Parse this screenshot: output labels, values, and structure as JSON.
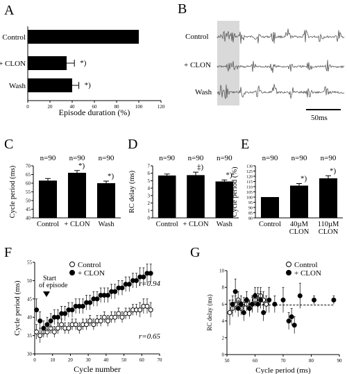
{
  "panels": {
    "A": {
      "letter": "A"
    },
    "B": {
      "letter": "B",
      "traces": [
        "Control",
        "+ CLON",
        "Wash"
      ],
      "scale_label": "50ms"
    },
    "C": {
      "letter": "C"
    },
    "D": {
      "letter": "D"
    },
    "E": {
      "letter": "E"
    },
    "F": {
      "letter": "F",
      "annotation": "Start\nof episode",
      "r_top": "r=0.94",
      "r_bottom": "r=0.65"
    },
    "G": {
      "letter": "G"
    }
  },
  "chart_data": [
    {
      "id": "A",
      "type": "bar",
      "orientation": "horizontal",
      "categories": [
        "Control",
        "+ CLON",
        "Wash"
      ],
      "values": [
        100,
        35,
        40
      ],
      "errors": [
        0,
        7,
        6
      ],
      "significance": [
        "",
        "*)",
        "*)"
      ],
      "xlabel": "Episode duration (%)",
      "xlim": [
        0,
        120
      ],
      "xticks": [
        0,
        20,
        40,
        60,
        80,
        100,
        120
      ]
    },
    {
      "id": "C",
      "type": "bar",
      "categories": [
        "Control",
        "+ CLON",
        "Wash"
      ],
      "values": [
        61.5,
        66,
        60
      ],
      "errors": [
        1.2,
        1.3,
        1.2
      ],
      "n_labels": [
        "n=90",
        "n=90",
        "n=90"
      ],
      "significance": [
        "",
        "*)",
        "*)"
      ],
      "ylabel": "Cycle period (ms)",
      "ylim": [
        40,
        70
      ],
      "yticks": [
        40,
        45,
        50,
        55,
        60,
        65,
        70
      ]
    },
    {
      "id": "D",
      "type": "bar",
      "categories": [
        "Control",
        "+ CLON",
        "Wash"
      ],
      "values": [
        5.7,
        5.75,
        4.9
      ],
      "errors": [
        0.2,
        0.4,
        0.2
      ],
      "n_labels": [
        "n=90",
        "n=90",
        "n=90"
      ],
      "significance": [
        "",
        "‡)",
        "*)"
      ],
      "ylabel": "RC delay (ms)",
      "ylim": [
        0,
        7
      ],
      "yticks": [
        0,
        1,
        2,
        3,
        4,
        5,
        6,
        7
      ]
    },
    {
      "id": "E",
      "type": "bar",
      "categories": [
        "Control",
        "40µM\nCLON",
        "110µM\nCLON"
      ],
      "values": [
        100,
        111,
        118
      ],
      "errors": [
        0,
        2,
        2.5
      ],
      "n_labels": [
        "n=90",
        "n=90",
        "n=90"
      ],
      "significance": [
        "",
        "*)",
        "*)"
      ],
      "ylabel": "Cycle period (%)",
      "ylim": [
        80,
        130
      ],
      "yticks": [
        80,
        85,
        90,
        95,
        100,
        105,
        110,
        115,
        120,
        125,
        130
      ]
    },
    {
      "id": "F",
      "type": "scatter",
      "xlabel": "Cycle number",
      "ylabel": "Cycle period (ms)",
      "xlim": [
        0,
        70
      ],
      "ylim": [
        30,
        55
      ],
      "xticks": [
        0,
        10,
        20,
        30,
        40,
        50,
        60,
        70
      ],
      "yticks": [
        30,
        35,
        40,
        45,
        50,
        55
      ],
      "series": [
        {
          "name": "Control",
          "marker": "open",
          "x": [
            1,
            3,
            5,
            7,
            9,
            11,
            13,
            15,
            17,
            19,
            21,
            23,
            25,
            27,
            29,
            31,
            33,
            35,
            37,
            39,
            41,
            43,
            45,
            47,
            49,
            51,
            53,
            55,
            57,
            59,
            61,
            63,
            65
          ],
          "y": [
            36,
            35,
            36,
            36,
            37,
            36,
            37,
            38,
            37,
            37,
            38,
            38,
            37,
            38,
            38,
            39,
            38,
            39,
            39,
            40,
            39,
            40,
            40,
            41,
            40,
            41,
            41,
            42,
            42,
            42,
            43,
            43,
            42
          ],
          "err": [
            2,
            2,
            1.5,
            1.5,
            1.5,
            1.5,
            1.5,
            1.5,
            1.5,
            1.5,
            1.5,
            1.5,
            1.5,
            1.5,
            1.5,
            1.5,
            1.5,
            1.5,
            1.5,
            1.5,
            1.5,
            1.5,
            1.5,
            1.5,
            1.5,
            1.5,
            1.5,
            1.5,
            1.5,
            2,
            2,
            2,
            2
          ]
        },
        {
          "name": "+ CLON",
          "marker": "filled",
          "x": [
            1,
            3,
            5,
            7,
            9,
            11,
            13,
            15,
            17,
            19,
            21,
            23,
            25,
            27,
            29,
            31,
            33,
            35,
            37,
            39,
            41,
            43,
            45,
            47,
            49,
            51,
            53,
            55,
            57,
            59,
            61,
            63,
            65
          ],
          "y": [
            42,
            39,
            37,
            38,
            39,
            40,
            40,
            41,
            41,
            42,
            42,
            43,
            43,
            43,
            44,
            44,
            45,
            45,
            46,
            46,
            46,
            47,
            47,
            48,
            48,
            49,
            49,
            50,
            50,
            51,
            51,
            52,
            52
          ],
          "err": [
            3,
            2.5,
            2,
            2,
            2,
            2,
            2,
            2,
            2,
            2,
            2,
            2,
            2,
            2,
            2,
            2,
            2,
            2,
            2,
            2,
            2,
            2,
            2,
            2,
            2,
            2,
            2,
            2,
            2,
            2.5,
            2.5,
            2.5,
            2.5
          ]
        }
      ]
    },
    {
      "id": "G",
      "type": "scatter",
      "xlabel": "Cycle period (ms)",
      "ylabel": "RC delay (ms)",
      "xlim": [
        50,
        90
      ],
      "ylim": [
        0,
        10
      ],
      "xticks": [
        50,
        60,
        70,
        80,
        90
      ],
      "yticks": [
        0,
        2,
        4,
        6,
        8,
        10
      ],
      "series": [
        {
          "name": "Control",
          "marker": "open",
          "x": [
            51,
            52,
            53,
            54,
            55,
            56,
            57,
            58,
            59,
            60,
            61,
            62,
            63,
            64
          ],
          "y": [
            5,
            5.5,
            6,
            6.5,
            5.5,
            6,
            6,
            5.5,
            6,
            6.5,
            7,
            7,
            6.5,
            6
          ],
          "err": [
            1.5,
            1,
            1,
            1,
            0.8,
            0.8,
            0.8,
            0.8,
            0.8,
            0.8,
            1,
            1,
            1,
            1
          ]
        },
        {
          "name": "+ CLON",
          "marker": "filled",
          "x": [
            52,
            53,
            54,
            55,
            56,
            57,
            58,
            59,
            60,
            61,
            62,
            63,
            65,
            67,
            70,
            72,
            73,
            74,
            76,
            81,
            88
          ],
          "y": [
            6,
            7.5,
            5.5,
            6,
            5,
            6.5,
            5.5,
            6,
            7,
            6,
            6.5,
            5,
            6.5,
            6,
            6.5,
            4,
            4.5,
            3.5,
            7,
            6.5,
            6.5
          ],
          "err": [
            1,
            1.5,
            1,
            1,
            1,
            1,
            1,
            1,
            1,
            1,
            1,
            1,
            1.5,
            1,
            1.5,
            1,
            1,
            1,
            1.5,
            0.5,
            0.5
          ]
        }
      ],
      "fit": {
        "x": [
          55,
          88
        ],
        "y": [
          5.9,
          5.9
        ]
      }
    }
  ]
}
